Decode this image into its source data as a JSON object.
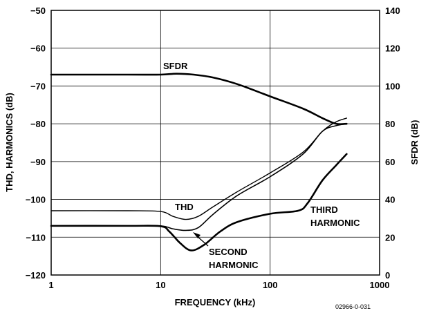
{
  "chart_data": {
    "type": "line",
    "xlabel": "FREQUENCY (kHz)",
    "ylabel_left": "THD, HARMONICS (dB)",
    "ylabel_right": "SFDR (dB)",
    "x_scale": "log",
    "xlim": [
      1,
      1000
    ],
    "ylim_left": [
      -120,
      -50
    ],
    "ylim_right": [
      0,
      140
    ],
    "x_ticks": [
      "1",
      "10",
      "100",
      "1000"
    ],
    "y_ticks_left": [
      "−50",
      "−60",
      "−70",
      "−80",
      "−90",
      "−100",
      "−110",
      "−120"
    ],
    "y_ticks_right": [
      "140",
      "120",
      "100",
      "80",
      "60",
      "40",
      "20",
      "0"
    ],
    "grid": true,
    "series": [
      {
        "name": "SFDR",
        "axis": "right",
        "points": [
          [
            1,
            106
          ],
          [
            5,
            106
          ],
          [
            10,
            106
          ],
          [
            14,
            106.5
          ],
          [
            20,
            106
          ],
          [
            30,
            104.5
          ],
          [
            50,
            101
          ],
          [
            100,
            94.5
          ],
          [
            200,
            88
          ],
          [
            300,
            83
          ],
          [
            400,
            80
          ],
          [
            500,
            80
          ]
        ]
      },
      {
        "name": "THD",
        "axis": "left",
        "points": [
          [
            1,
            -103
          ],
          [
            5,
            -103
          ],
          [
            10,
            -103.2
          ],
          [
            13,
            -104.5
          ],
          [
            17,
            -105.3
          ],
          [
            22,
            -104.5
          ],
          [
            30,
            -102
          ],
          [
            50,
            -98
          ],
          [
            100,
            -93
          ],
          [
            200,
            -87.5
          ],
          [
            300,
            -82
          ],
          [
            400,
            -79.5
          ],
          [
            500,
            -78.5
          ]
        ]
      },
      {
        "name": "SECOND HARMONIC",
        "axis": "left",
        "points": [
          [
            1,
            -107
          ],
          [
            5,
            -107
          ],
          [
            10,
            -107
          ],
          [
            13,
            -107.8
          ],
          [
            17,
            -108.2
          ],
          [
            22,
            -107.5
          ],
          [
            30,
            -104
          ],
          [
            50,
            -99
          ],
          [
            100,
            -94
          ],
          [
            200,
            -88
          ],
          [
            300,
            -82
          ],
          [
            400,
            -80.5
          ],
          [
            500,
            -80
          ]
        ]
      },
      {
        "name": "THIRD HARMONIC",
        "axis": "left",
        "points": [
          [
            1,
            -107
          ],
          [
            5,
            -107
          ],
          [
            10,
            -107.1
          ],
          [
            12,
            -108.5
          ],
          [
            15,
            -111.5
          ],
          [
            19,
            -113.5
          ],
          [
            25,
            -112
          ],
          [
            35,
            -108.5
          ],
          [
            50,
            -106
          ],
          [
            100,
            -103.8
          ],
          [
            180,
            -103
          ],
          [
            220,
            -101
          ],
          [
            300,
            -95
          ],
          [
            400,
            -91
          ],
          [
            500,
            -88
          ]
        ]
      }
    ],
    "annotations": {
      "sfdr": "SFDR",
      "thd": "THD",
      "third_line1": "THIRD",
      "third_line2": "HARMONIC",
      "second_line1": "SECOND",
      "second_line2": "HARMONIC"
    },
    "figure_id": "02966-0-031"
  }
}
